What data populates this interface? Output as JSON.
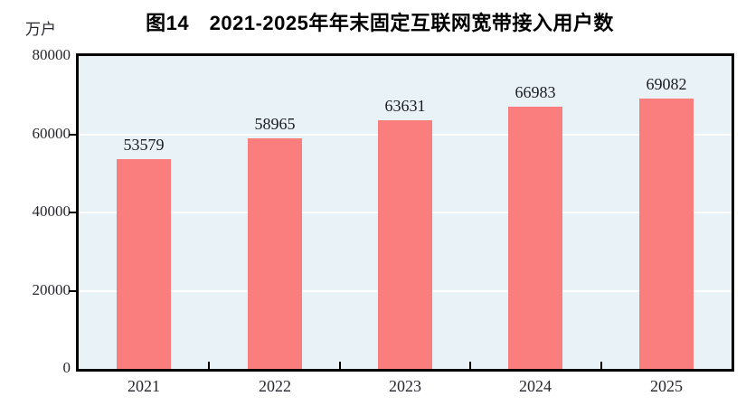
{
  "chart_data": {
    "type": "bar",
    "title": "图14　2021-2025年年末固定互联网宽带接入用户数",
    "unit_label": "万户",
    "categories": [
      "2021",
      "2022",
      "2023",
      "2024",
      "2025"
    ],
    "values": [
      53579,
      58965,
      63631,
      66983,
      69082
    ],
    "value_labels": [
      "53579",
      "58965",
      "63631",
      "66983",
      "69082"
    ],
    "ylim": [
      0,
      80000
    ],
    "yticks": [
      0,
      20000,
      40000,
      60000,
      80000
    ],
    "ytick_labels": [
      "0",
      "20000",
      "40000",
      "60000",
      "80000"
    ],
    "xlabel": "",
    "ylabel": "",
    "legend_position": "none",
    "grid": "horizontal",
    "colors": {
      "bar_fill": "#FB7E7E",
      "plot_background": "#E9F2F7",
      "gridline": "#FFFFFF",
      "axis_frame": "#000000",
      "title_text": "#000000",
      "tick_text": "#26262E"
    }
  }
}
